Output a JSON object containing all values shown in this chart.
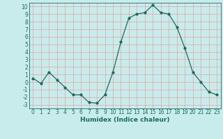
{
  "x": [
    0,
    1,
    2,
    3,
    4,
    5,
    6,
    7,
    8,
    9,
    10,
    11,
    12,
    13,
    14,
    15,
    16,
    17,
    18,
    19,
    20,
    21,
    22,
    23
  ],
  "y": [
    0.5,
    -0.2,
    1.3,
    0.3,
    -0.7,
    -1.7,
    -1.7,
    -2.7,
    -2.8,
    -1.7,
    1.3,
    5.3,
    8.5,
    9.0,
    9.2,
    10.2,
    9.2,
    9.0,
    7.3,
    4.5,
    1.3,
    0.0,
    -1.3,
    -1.7
  ],
  "line_color": "#1a6b5e",
  "marker": "o",
  "markersize": 2.0,
  "linewidth": 0.9,
  "xlabel": "Humidex (Indice chaleur)",
  "xlim": [
    -0.5,
    23.5
  ],
  "ylim": [
    -3.5,
    10.5
  ],
  "yticks": [
    -3,
    -2,
    -1,
    0,
    1,
    2,
    3,
    4,
    5,
    6,
    7,
    8,
    9,
    10
  ],
  "xticks": [
    0,
    1,
    2,
    3,
    4,
    5,
    6,
    7,
    8,
    9,
    10,
    11,
    12,
    13,
    14,
    15,
    16,
    17,
    18,
    19,
    20,
    21,
    22,
    23
  ],
  "bg_color": "#c8ecec",
  "grid_color": "#e8a0a0",
  "tick_fontsize": 5.5,
  "xlabel_fontsize": 6.5
}
